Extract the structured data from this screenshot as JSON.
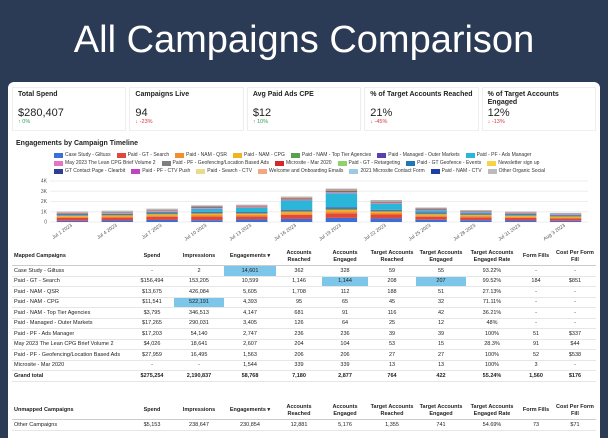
{
  "header": {
    "title": "All Campaigns Comparison"
  },
  "kpis": [
    {
      "label": "Total Spend",
      "value": "$280,407",
      "delta": "↑ 0%",
      "color": "#2e9e4f"
    },
    {
      "label": "Campaigns Live",
      "value": "94",
      "delta": "↓ -23%",
      "color": "#d9363e"
    },
    {
      "label": "Avg Paid Ads CPE",
      "value": "$12",
      "delta": "↑ 10%",
      "color": "#2e9e4f"
    },
    {
      "label": "% of Target Accounts Reached",
      "value": "21%",
      "delta": "↓ -45%",
      "color": "#d9363e"
    },
    {
      "label": "% of Target Accounts Engaged",
      "value": "12%",
      "delta": "↓ -13%",
      "color": "#d9363e"
    }
  ],
  "chart_data": {
    "type": "stacked_bar",
    "title": "Engagements by Campaign Timeline",
    "categories": [
      "Jul 1 2023",
      "Jul 4 2023",
      "Jul 7 2023",
      "Jul 10 2023",
      "Jul 13 2023",
      "Jul 16 2023",
      "Jul 19 2023",
      "Jul 22 2023",
      "Jul 25 2023",
      "Jul 28 2023",
      "Jul 31 2023",
      "Aug 3 2023"
    ],
    "ylim": [
      0,
      4000
    ],
    "yticks": [
      0,
      {
        "value": 1000,
        "label": "1K"
      },
      {
        "value": 2000,
        "label": "2K"
      },
      {
        "value": 3000,
        "label": "3K"
      },
      {
        "value": 4000,
        "label": "4K"
      }
    ],
    "series": [
      {
        "name": "Case Study - Giltuss",
        "color": "#3b6fd6",
        "values": [
          120,
          150,
          200,
          180,
          250,
          300,
          400,
          350,
          220,
          180,
          150,
          120
        ]
      },
      {
        "name": "Paid - GT - Search",
        "color": "#e0483b",
        "values": [
          300,
          280,
          320,
          350,
          300,
          400,
          450,
          380,
          300,
          280,
          260,
          240
        ]
      },
      {
        "name": "Paid - NAM - QSR",
        "color": "#f28e2b",
        "values": [
          100,
          120,
          130,
          150,
          140,
          160,
          180,
          150,
          130,
          120,
          110,
          100
        ]
      },
      {
        "name": "Paid - NAM - CPG",
        "color": "#f0b323",
        "values": [
          80,
          90,
          100,
          120,
          110,
          130,
          150,
          120,
          100,
          90,
          80,
          70
        ]
      },
      {
        "name": "Paid - NAM - Top Tier Agencies",
        "color": "#59a14f",
        "values": [
          70,
          80,
          90,
          100,
          90,
          110,
          120,
          100,
          90,
          80,
          70,
          60
        ]
      },
      {
        "name": "Paid - Managed - Outer Markets",
        "color": "#5b3fb0",
        "values": [
          60,
          70,
          80,
          90,
          80,
          100,
          110,
          90,
          80,
          70,
          60,
          50
        ]
      },
      {
        "name": "Paid - PF - Ads Manager",
        "color": "#29b6d8",
        "values": [
          50,
          60,
          80,
          300,
          400,
          900,
          1400,
          600,
          200,
          100,
          60,
          50
        ]
      },
      {
        "name": "May 2023 The Lean CPG Brief Volume 2",
        "color": "#e377c2",
        "values": [
          40,
          50,
          60,
          70,
          60,
          80,
          90,
          70,
          60,
          50,
          40,
          30
        ]
      },
      {
        "name": "Paid - PF - Geofencing/Location Based Ads",
        "color": "#7f7f7f",
        "values": [
          30,
          40,
          50,
          60,
          50,
          60,
          70,
          60,
          50,
          40,
          30,
          30
        ]
      },
      {
        "name": "Microsite - Mar 2020",
        "color": "#d62728",
        "values": [
          30,
          30,
          40,
          40,
          40,
          50,
          60,
          50,
          40,
          30,
          30,
          20
        ]
      },
      {
        "name": "Paid - GT - Retargeting",
        "color": "#8fd16d",
        "values": [
          20,
          20,
          30,
          30,
          30,
          40,
          40,
          30,
          30,
          20,
          20,
          20
        ]
      },
      {
        "name": "Paid - GT Geofence - Events",
        "color": "#1f77b4",
        "values": [
          20,
          20,
          20,
          30,
          30,
          30,
          40,
          30,
          20,
          20,
          20,
          20
        ]
      },
      {
        "name": "Newsletter sign up",
        "color": "#f5d547",
        "values": [
          20,
          20,
          20,
          20,
          20,
          30,
          30,
          20,
          20,
          20,
          20,
          10
        ]
      },
      {
        "name": "GT Contact Page - Clearbit",
        "color": "#2e3f8f",
        "values": [
          10,
          10,
          20,
          20,
          20,
          20,
          30,
          20,
          20,
          10,
          10,
          10
        ]
      },
      {
        "name": "Paid - PF - CTV Push",
        "color": "#c043c0",
        "values": [
          10,
          10,
          10,
          20,
          20,
          20,
          20,
          20,
          10,
          10,
          10,
          10
        ]
      },
      {
        "name": "Paid - Search - CTV",
        "color": "#e8dc8c",
        "values": [
          10,
          10,
          10,
          10,
          10,
          20,
          20,
          10,
          10,
          10,
          10,
          10
        ]
      },
      {
        "name": "Welcome and Onboarding Emails",
        "color": "#f4a582",
        "values": [
          10,
          10,
          10,
          10,
          10,
          10,
          20,
          10,
          10,
          10,
          10,
          10
        ]
      },
      {
        "name": "2021 Microsite Contact Form",
        "color": "#9ecae1",
        "values": [
          10,
          10,
          10,
          10,
          10,
          10,
          10,
          10,
          10,
          10,
          10,
          10
        ]
      },
      {
        "name": "Paid - NAM - CTV",
        "color": "#1f3fa8",
        "values": [
          10,
          10,
          10,
          10,
          10,
          10,
          10,
          10,
          10,
          10,
          10,
          10
        ]
      },
      {
        "name": "Other Organic Social",
        "color": "#bbbbbb",
        "values": [
          10,
          10,
          10,
          10,
          10,
          10,
          10,
          10,
          10,
          10,
          10,
          10
        ]
      }
    ]
  },
  "mapped": {
    "header": [
      "Mapped Campaigns",
      "Spend",
      "Impressions",
      "Engagements ▾",
      "Accounts Reached",
      "Accounts Engaged",
      "Target Accounts Reached",
      "Target Accounts Engaged",
      "Target Accounts Engaged Rate",
      "Form Fills",
      "Cost Per Form Fill"
    ],
    "rows": [
      [
        "Case Study - Giltuss",
        "-",
        "2",
        "14,601",
        "362",
        "328",
        "59",
        "55",
        "93.22%",
        "-",
        "-"
      ],
      [
        "Paid - GT - Search",
        "$156,494",
        "153,205",
        "10,599",
        "1,146",
        "1,144",
        "208",
        "207",
        "99.52%",
        "184",
        "$851"
      ],
      [
        "Paid - NAM - QSR",
        "$13,675",
        "426,084",
        "5,605",
        "1,708",
        "112",
        "188",
        "51",
        "27.13%",
        "-",
        "-"
      ],
      [
        "Paid - NAM - CPG",
        "$11,541",
        "522,191",
        "4,393",
        "95",
        "65",
        "45",
        "32",
        "71.11%",
        "-",
        "-"
      ],
      [
        "Paid - NAM - Top Tier Agencies",
        "$3,795",
        "346,513",
        "4,147",
        "681",
        "91",
        "116",
        "42",
        "36.21%",
        "-",
        "-"
      ],
      [
        "Paid - Managed - Outer Markets",
        "$17,265",
        "290,031",
        "3,405",
        "126",
        "64",
        "25",
        "12",
        "48%",
        "-",
        "-"
      ],
      [
        "Paid - PF - Ads Manager",
        "$17,203",
        "54,140",
        "2,747",
        "236",
        "236",
        "39",
        "39",
        "100%",
        "51",
        "$337"
      ],
      [
        "May 2023 The Lean CPG Brief Volume 2",
        "$4,026",
        "18,641",
        "2,607",
        "204",
        "104",
        "53",
        "15",
        "28.3%",
        "91",
        "$44"
      ],
      [
        "Paid - PF - Geofencing/Location Based Ads",
        "$27,959",
        "16,495",
        "1,563",
        "206",
        "206",
        "27",
        "27",
        "100%",
        "52",
        "$538"
      ],
      [
        "Microsite - Mar 2020",
        "-",
        "-",
        "1,544",
        "339",
        "339",
        "13",
        "13",
        "100%",
        "3",
        "-"
      ]
    ],
    "total": [
      "Grand total",
      "$275,254",
      "2,190,837",
      "58,768",
      "7,180",
      "2,877",
      "764",
      "422",
      "55.24%",
      "1,560",
      "$176"
    ]
  },
  "unmapped": {
    "header": [
      "Unmapped Campaigns",
      "Spend",
      "Impressions",
      "Engagements ▾",
      "Accounts Reached",
      "Accounts Engaged",
      "Target Accounts Reached",
      "Target Accounts Engaged",
      "Target Accounts Engaged Rate",
      "Form Fills",
      "Cost Per Form Fill"
    ],
    "rows": [
      [
        "Other Campaigns",
        "$5,153",
        "238,647",
        "230,854",
        "12,881",
        "5,176",
        "1,355",
        "741",
        "54.69%",
        "73",
        "$71"
      ]
    ]
  }
}
